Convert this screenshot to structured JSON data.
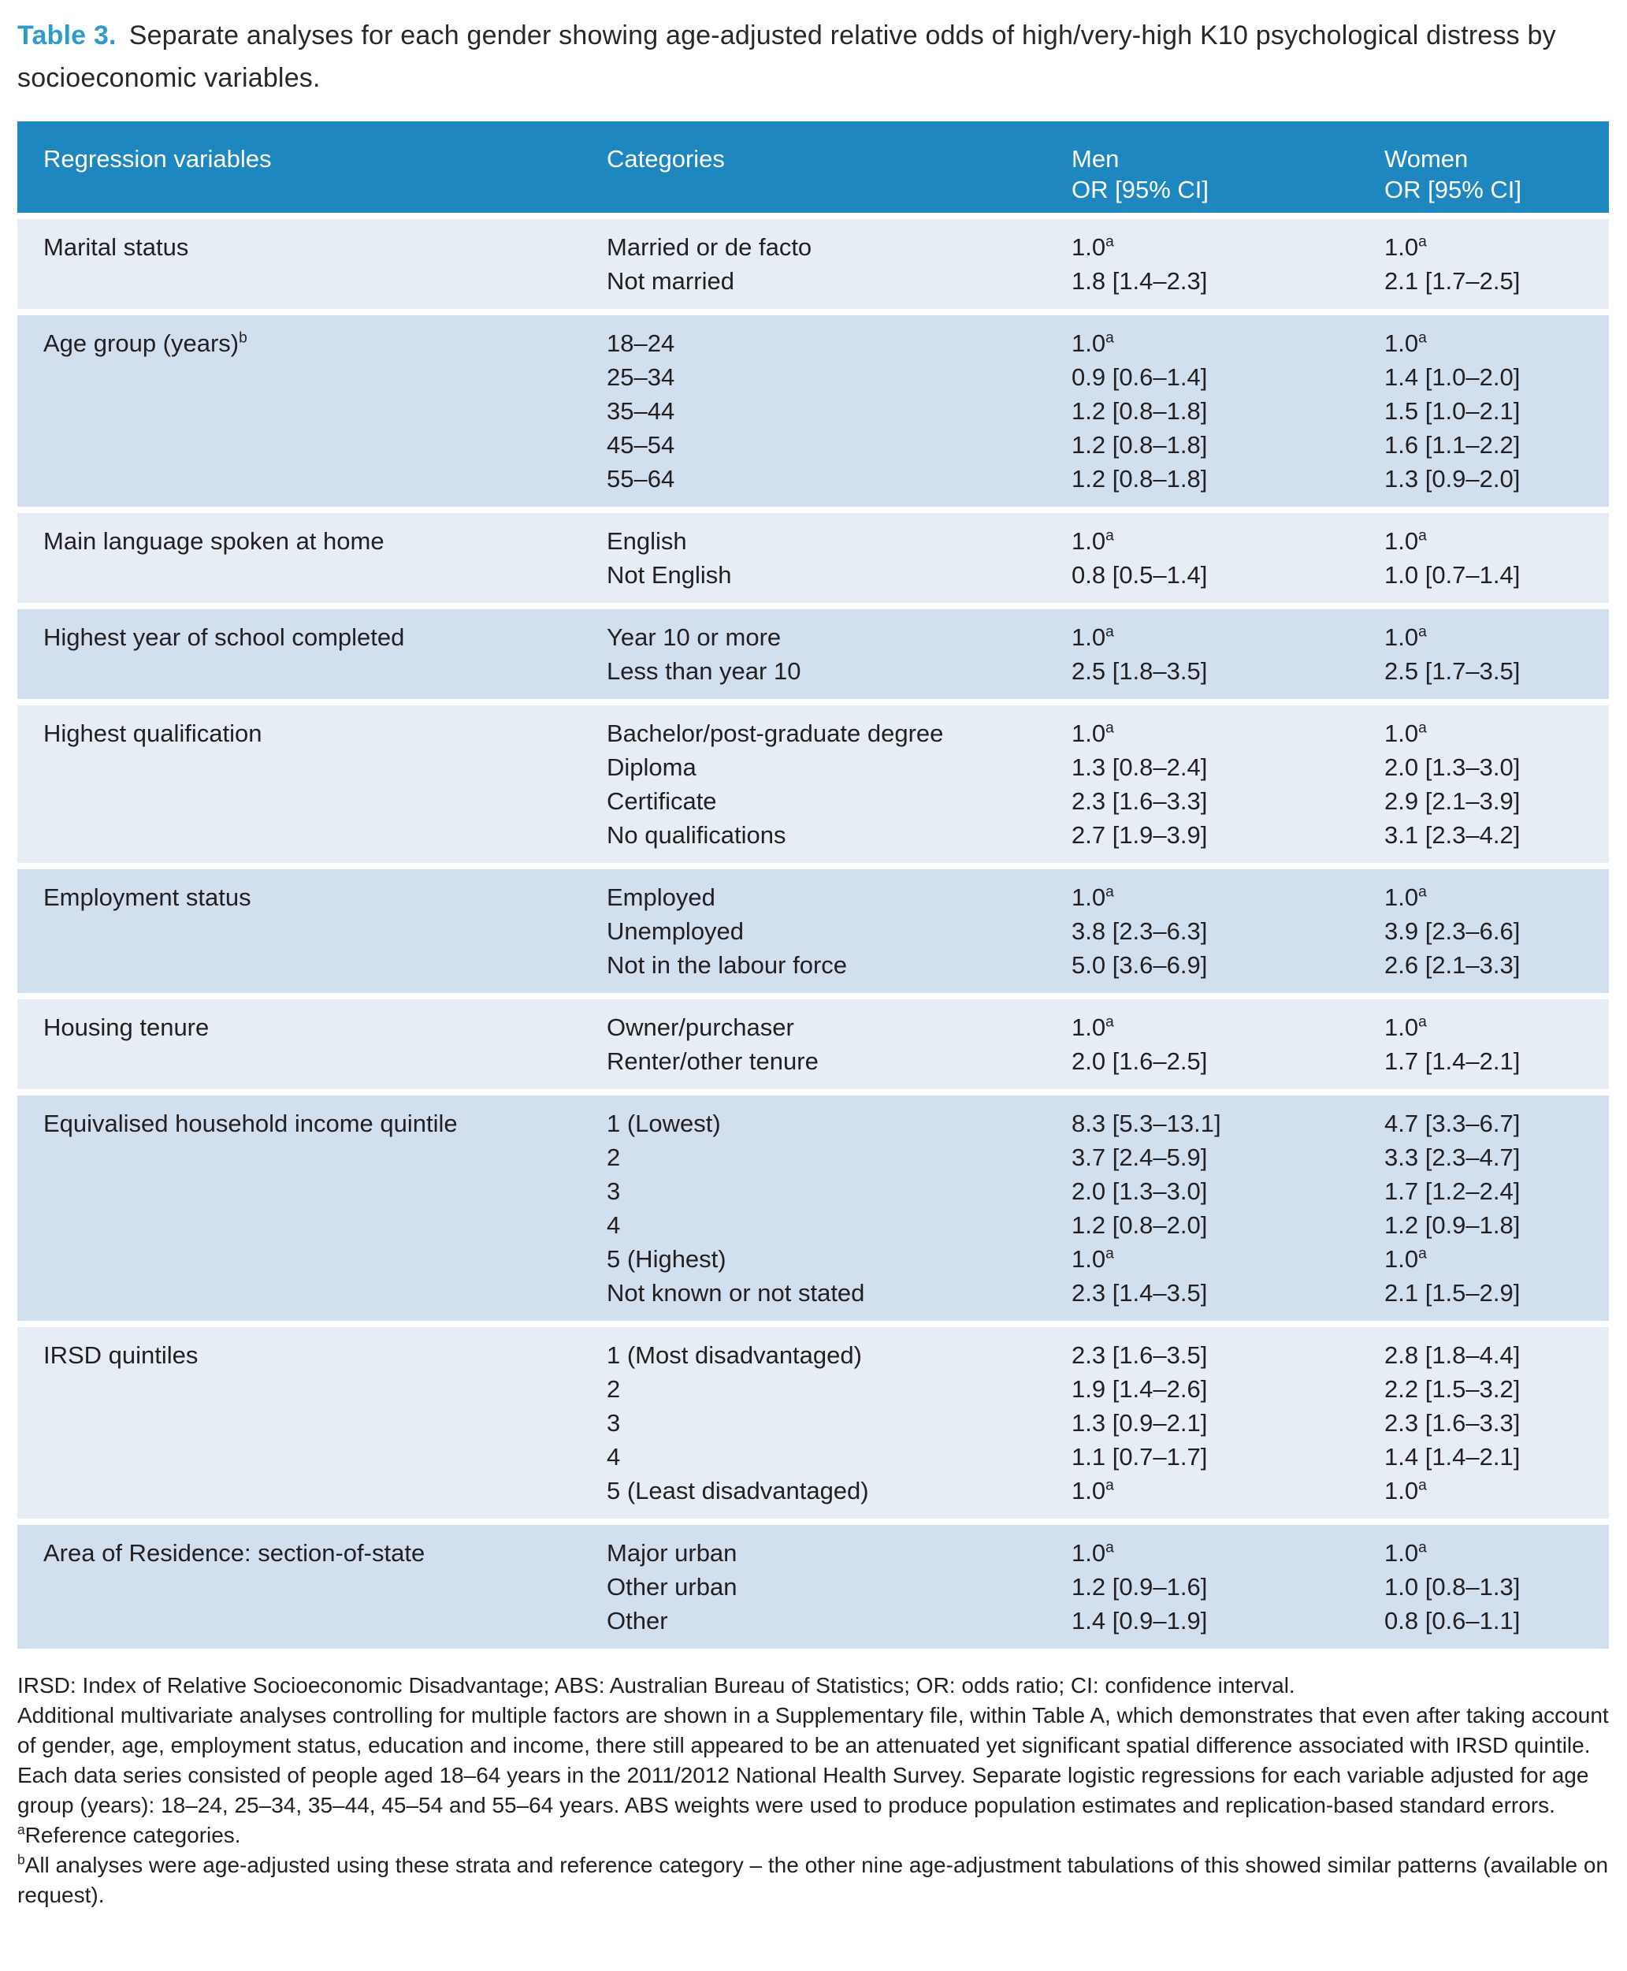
{
  "title": {
    "label": "Table 3.",
    "text": "Separate analyses for each gender showing age-adjusted relative odds of high/very-high K10 psychological distress by socioeconomic variables."
  },
  "colors": {
    "header_bg": "#1e87bf",
    "row_light": "#e6edf5",
    "row_dark": "#d2dfee",
    "title_accent": "#2f9bc9",
    "text": "#231f20"
  },
  "table": {
    "headers": {
      "regression": "Regression variables",
      "categories": "Categories",
      "men": "Men",
      "women": "Women",
      "or_ci": "OR [95% CI]"
    },
    "sections": [
      {
        "variable": "Marital status",
        "variable_sup": "",
        "rows": [
          {
            "category": "Married or de facto",
            "men": "1.0",
            "men_sup": "a",
            "women": "1.0",
            "women_sup": "a"
          },
          {
            "category": "Not married",
            "men": "1.8 [1.4–2.3]",
            "men_sup": "",
            "women": "2.1 [1.7–2.5]",
            "women_sup": ""
          }
        ]
      },
      {
        "variable": "Age group (years)",
        "variable_sup": "b",
        "rows": [
          {
            "category": "18–24",
            "men": "1.0",
            "men_sup": "a",
            "women": "1.0",
            "women_sup": "a"
          },
          {
            "category": "25–34",
            "men": "0.9 [0.6–1.4]",
            "men_sup": "",
            "women": "1.4 [1.0–2.0]",
            "women_sup": ""
          },
          {
            "category": "35–44",
            "men": "1.2 [0.8–1.8]",
            "men_sup": "",
            "women": "1.5 [1.0–2.1]",
            "women_sup": ""
          },
          {
            "category": "45–54",
            "men": "1.2 [0.8–1.8]",
            "men_sup": "",
            "women": "1.6 [1.1–2.2]",
            "women_sup": ""
          },
          {
            "category": "55–64",
            "men": "1.2 [0.8–1.8]",
            "men_sup": "",
            "women": "1.3 [0.9–2.0]",
            "women_sup": ""
          }
        ]
      },
      {
        "variable": "Main language spoken at home",
        "variable_sup": "",
        "rows": [
          {
            "category": "English",
            "men": "1.0",
            "men_sup": "a",
            "women": "1.0",
            "women_sup": "a"
          },
          {
            "category": "Not English",
            "men": "0.8 [0.5–1.4]",
            "men_sup": "",
            "women": "1.0 [0.7–1.4]",
            "women_sup": ""
          }
        ]
      },
      {
        "variable": "Highest year of school completed",
        "variable_sup": "",
        "rows": [
          {
            "category": "Year 10 or more",
            "men": "1.0",
            "men_sup": "a",
            "women": "1.0",
            "women_sup": "a"
          },
          {
            "category": "Less than year 10",
            "men": "2.5 [1.8–3.5]",
            "men_sup": "",
            "women": "2.5 [1.7–3.5]",
            "women_sup": ""
          }
        ]
      },
      {
        "variable": "Highest qualification",
        "variable_sup": "",
        "rows": [
          {
            "category": "Bachelor/post-graduate degree",
            "men": "1.0",
            "men_sup": "a",
            "women": "1.0",
            "women_sup": "a"
          },
          {
            "category": "Diploma",
            "men": "1.3 [0.8–2.4]",
            "men_sup": "",
            "women": "2.0 [1.3–3.0]",
            "women_sup": ""
          },
          {
            "category": "Certificate",
            "men": "2.3 [1.6–3.3]",
            "men_sup": "",
            "women": "2.9 [2.1–3.9]",
            "women_sup": ""
          },
          {
            "category": "No qualifications",
            "men": "2.7 [1.9–3.9]",
            "men_sup": "",
            "women": "3.1 [2.3–4.2]",
            "women_sup": ""
          }
        ]
      },
      {
        "variable": "Employment status",
        "variable_sup": "",
        "rows": [
          {
            "category": "Employed",
            "men": "1.0",
            "men_sup": "a",
            "women": "1.0",
            "women_sup": "a"
          },
          {
            "category": "Unemployed",
            "men": "3.8 [2.3–6.3]",
            "men_sup": "",
            "women": "3.9 [2.3–6.6]",
            "women_sup": ""
          },
          {
            "category": "Not in the labour force",
            "men": "5.0 [3.6–6.9]",
            "men_sup": "",
            "women": "2.6 [2.1–3.3]",
            "women_sup": ""
          }
        ]
      },
      {
        "variable": "Housing tenure",
        "variable_sup": "",
        "rows": [
          {
            "category": "Owner/purchaser",
            "men": "1.0",
            "men_sup": "a",
            "women": "1.0",
            "women_sup": "a"
          },
          {
            "category": "Renter/other tenure",
            "men": "2.0 [1.6–2.5]",
            "men_sup": "",
            "women": "1.7 [1.4–2.1]",
            "women_sup": ""
          }
        ]
      },
      {
        "variable": "Equivalised household income quintile",
        "variable_sup": "",
        "rows": [
          {
            "category": "1 (Lowest)",
            "men": "8.3 [5.3–13.1]",
            "men_sup": "",
            "women": "4.7 [3.3–6.7]",
            "women_sup": ""
          },
          {
            "category": "2",
            "men": "3.7 [2.4–5.9]",
            "men_sup": "",
            "women": "3.3 [2.3–4.7]",
            "women_sup": ""
          },
          {
            "category": "3",
            "men": "2.0 [1.3–3.0]",
            "men_sup": "",
            "women": "1.7 [1.2–2.4]",
            "women_sup": ""
          },
          {
            "category": "4",
            "men": "1.2 [0.8–2.0]",
            "men_sup": "",
            "women": "1.2 [0.9–1.8]",
            "women_sup": ""
          },
          {
            "category": "5 (Highest)",
            "men": "1.0",
            "men_sup": "a",
            "women": "1.0",
            "women_sup": "a"
          },
          {
            "category": "Not known or not stated",
            "men": "2.3 [1.4–3.5]",
            "men_sup": "",
            "women": "2.1 [1.5–2.9]",
            "women_sup": ""
          }
        ]
      },
      {
        "variable": "IRSD quintiles",
        "variable_sup": "",
        "rows": [
          {
            "category": "1 (Most disadvantaged)",
            "men": "2.3 [1.6–3.5]",
            "men_sup": "",
            "women": "2.8 [1.8–4.4]",
            "women_sup": ""
          },
          {
            "category": "2",
            "men": "1.9 [1.4–2.6]",
            "men_sup": "",
            "women": "2.2 [1.5–3.2]",
            "women_sup": ""
          },
          {
            "category": "3",
            "men": "1.3 [0.9–2.1]",
            "men_sup": "",
            "women": "2.3 [1.6–3.3]",
            "women_sup": ""
          },
          {
            "category": "4",
            "men": "1.1 [0.7–1.7]",
            "men_sup": "",
            "women": "1.4 [1.4–2.1]",
            "women_sup": ""
          },
          {
            "category": "5 (Least disadvantaged)",
            "men": "1.0",
            "men_sup": "a",
            "women": "1.0",
            "women_sup": "a"
          }
        ]
      },
      {
        "variable": "Area of Residence: section-of-state",
        "variable_sup": "",
        "rows": [
          {
            "category": "Major urban",
            "men": "1.0",
            "men_sup": "a",
            "women": "1.0",
            "women_sup": "a"
          },
          {
            "category": "Other urban",
            "men": "1.2 [0.9–1.6]",
            "men_sup": "",
            "women": "1.0 [0.8–1.3]",
            "women_sup": ""
          },
          {
            "category": "Other",
            "men": "1.4 [0.9–1.9]",
            "men_sup": "",
            "women": "0.8 [0.6–1.1]",
            "women_sup": ""
          }
        ]
      }
    ]
  },
  "footnotes": [
    {
      "sup": "",
      "text": "IRSD: Index of Relative Socioeconomic Disadvantage; ABS: Australian Bureau of Statistics; OR: odds ratio; CI: confidence interval."
    },
    {
      "sup": "",
      "text": "Additional multivariate analyses controlling for multiple factors are shown in a Supplementary file, within Table A, which demonstrates that even after taking account of gender, age, employment status, education and income, there still appeared to be an attenuated yet significant spatial difference associated with IRSD quintile."
    },
    {
      "sup": "",
      "text": "Each data series consisted of people aged 18–64 years in the 2011/2012 National Health Survey. Separate logistic regressions for each variable adjusted for age group (years): 18–24, 25–34, 35–44, 45–54 and 55–64 years. ABS weights were used to produce population estimates and replication-based standard errors."
    },
    {
      "sup": "a",
      "text": "Reference categories."
    },
    {
      "sup": "b",
      "text": "All analyses were age-adjusted using these strata and reference category – the other nine age-adjustment tabulations of this showed similar patterns (available on request)."
    }
  ]
}
